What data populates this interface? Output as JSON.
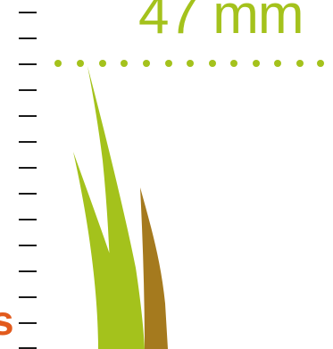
{
  "measurement": {
    "label": "47 mm"
  },
  "partial_text": {
    "value": "s"
  },
  "colors": {
    "grass_green": "#a4c21c",
    "grass_brown": "#a57a1e",
    "tick": "#1a1a1a",
    "accent_orange": "#e25a1c"
  }
}
